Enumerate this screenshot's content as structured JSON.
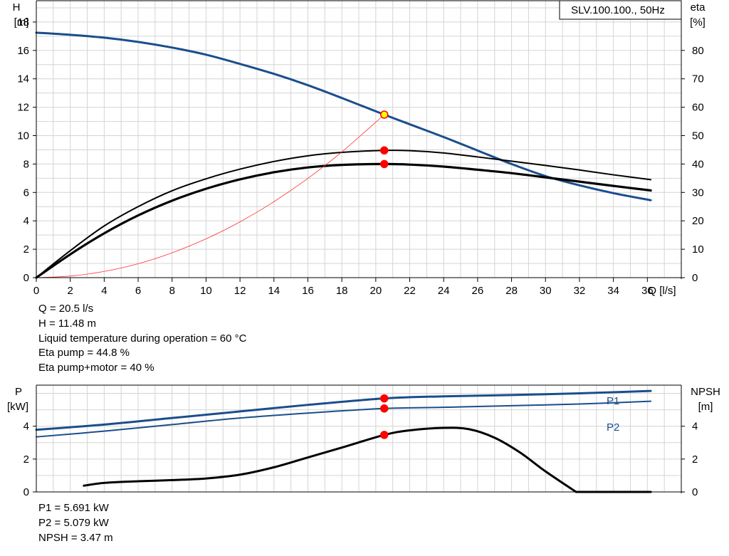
{
  "chart_data": [
    {
      "type": "line",
      "title": "SLV.100.100., 50Hz",
      "xlabel": "Q [l/s]",
      "ylabel": [
        "H",
        "[m]"
      ],
      "y2label": [
        "eta",
        "[%]"
      ],
      "xlim": [
        0,
        38
      ],
      "ylim": [
        0,
        19.5
      ],
      "y2lim": [
        0,
        97.5
      ],
      "xticks": [
        0,
        2,
        4,
        6,
        8,
        10,
        12,
        14,
        16,
        18,
        20,
        22,
        24,
        26,
        28,
        30,
        32,
        34,
        36
      ],
      "yticks": [
        0,
        2,
        4,
        6,
        8,
        10,
        12,
        14,
        16,
        18
      ],
      "y2ticks": [
        0,
        10,
        20,
        30,
        40,
        50,
        60,
        70,
        80
      ],
      "grid": true,
      "series": [
        {
          "key": "H",
          "axis": "left",
          "color": "#1a4e8c",
          "x": [
            0,
            2,
            4,
            6,
            8,
            10,
            12,
            14,
            16,
            18,
            20.5,
            22,
            24,
            26,
            28,
            30,
            32,
            34,
            36.2
          ],
          "y": [
            17.25,
            17.1,
            16.9,
            16.6,
            16.2,
            15.7,
            15.05,
            14.35,
            13.55,
            12.65,
            11.48,
            10.8,
            9.9,
            8.95,
            8.0,
            7.15,
            6.5,
            5.95,
            5.45
          ]
        },
        {
          "key": "eta_pump",
          "axis": "right",
          "color": "#000000",
          "x": [
            0,
            2,
            4,
            6,
            8,
            10,
            12,
            14,
            16,
            18,
            20.5,
            22,
            24,
            26,
            28,
            30,
            32,
            34,
            36.2
          ],
          "y": [
            0,
            9.5,
            18.2,
            25,
            30.6,
            34.8,
            38.2,
            40.9,
            42.9,
            44.1,
            44.8,
            44.7,
            43.9,
            42.5,
            41.0,
            39.5,
            37.9,
            36.2,
            34.5
          ]
        },
        {
          "key": "eta_pump_motor",
          "axis": "right",
          "color": "#000000",
          "x": [
            0,
            2,
            4,
            6,
            8,
            10,
            12,
            14,
            16,
            18,
            20.5,
            22,
            24,
            26,
            28,
            30,
            32,
            34,
            36.2
          ],
          "y": [
            0,
            8.2,
            15.6,
            21.9,
            27.1,
            31.3,
            34.6,
            37.1,
            38.8,
            39.7,
            40,
            39.8,
            39.1,
            38.0,
            36.8,
            35.3,
            33.8,
            32.3,
            30.7
          ]
        },
        {
          "key": "system_curve",
          "axis": "left",
          "color": "#ff3030",
          "x": [
            0,
            2,
            4,
            6,
            8,
            10,
            12,
            14,
            16,
            18,
            20.5
          ],
          "y": [
            0,
            0.11,
            0.44,
            0.98,
            1.75,
            2.73,
            3.93,
            5.35,
            6.99,
            8.85,
            11.48
          ]
        }
      ],
      "markers": [
        {
          "x": 20.5,
          "y": 11.48,
          "axis": "left",
          "fill": "#ffff00",
          "stroke": "#ff0000"
        },
        {
          "x": 20.5,
          "y": 44.8,
          "axis": "right",
          "fill": "#ff0000",
          "stroke": "#ff0000"
        },
        {
          "x": 20.5,
          "y": 40,
          "axis": "right",
          "fill": "#ff0000",
          "stroke": "#ff0000"
        }
      ]
    },
    {
      "type": "line",
      "xlim": [
        0,
        38
      ],
      "ylabel": [
        "P",
        "[kW]"
      ],
      "y2label": [
        "NPSH",
        "[m]"
      ],
      "ylim": [
        0,
        6.5
      ],
      "y2lim": [
        0,
        6.5
      ],
      "yticks": [
        0,
        2,
        4
      ],
      "y2ticks": [
        0,
        2,
        4
      ],
      "grid": true,
      "series": [
        {
          "key": "P1",
          "name": "P1",
          "axis": "left",
          "color": "#1a4e8c",
          "x": [
            0,
            4,
            8,
            12,
            16,
            20.5,
            24,
            28,
            32,
            36.2
          ],
          "y": [
            3.78,
            4.1,
            4.5,
            4.9,
            5.3,
            5.691,
            5.82,
            5.9,
            6.0,
            6.15
          ]
        },
        {
          "key": "P2",
          "name": "P2",
          "axis": "left",
          "color": "#1a4e8c",
          "x": [
            0,
            4,
            8,
            12,
            16,
            20.5,
            24,
            28,
            32,
            36.2
          ],
          "y": [
            3.35,
            3.7,
            4.1,
            4.5,
            4.8,
            5.079,
            5.15,
            5.25,
            5.35,
            5.52
          ]
        },
        {
          "key": "NPSH",
          "axis": "right",
          "color": "#000000",
          "x": [
            2.8,
            4,
            6,
            8,
            10,
            12,
            14,
            16,
            18,
            20.5,
            22,
            24,
            25.5,
            27,
            28.5,
            30,
            31.8,
            36.2
          ],
          "y": [
            0.38,
            0.55,
            0.65,
            0.72,
            0.82,
            1.05,
            1.5,
            2.1,
            2.7,
            3.47,
            3.75,
            3.9,
            3.82,
            3.3,
            2.4,
            1.25,
            0,
            0
          ]
        }
      ],
      "markers": [
        {
          "x": 20.5,
          "y": 5.691,
          "axis": "left",
          "fill": "#ff0000",
          "stroke": "#ff0000"
        },
        {
          "x": 20.5,
          "y": 5.079,
          "axis": "left",
          "fill": "#ff0000",
          "stroke": "#ff0000"
        },
        {
          "x": 20.5,
          "y": 3.47,
          "axis": "right",
          "fill": "#ff0000",
          "stroke": "#ff0000"
        }
      ]
    }
  ],
  "info_top": [
    "Q = 20.5 l/s",
    "H = 11.48 m",
    "Liquid temperature during operation = 60 °C",
    "Eta pump = 44.8 %",
    "Eta pump+motor = 40 %"
  ],
  "info_bottom": [
    "P1 = 5.691 kW",
    "P2 = 5.079 kW",
    "NPSH = 3.47 m"
  ]
}
